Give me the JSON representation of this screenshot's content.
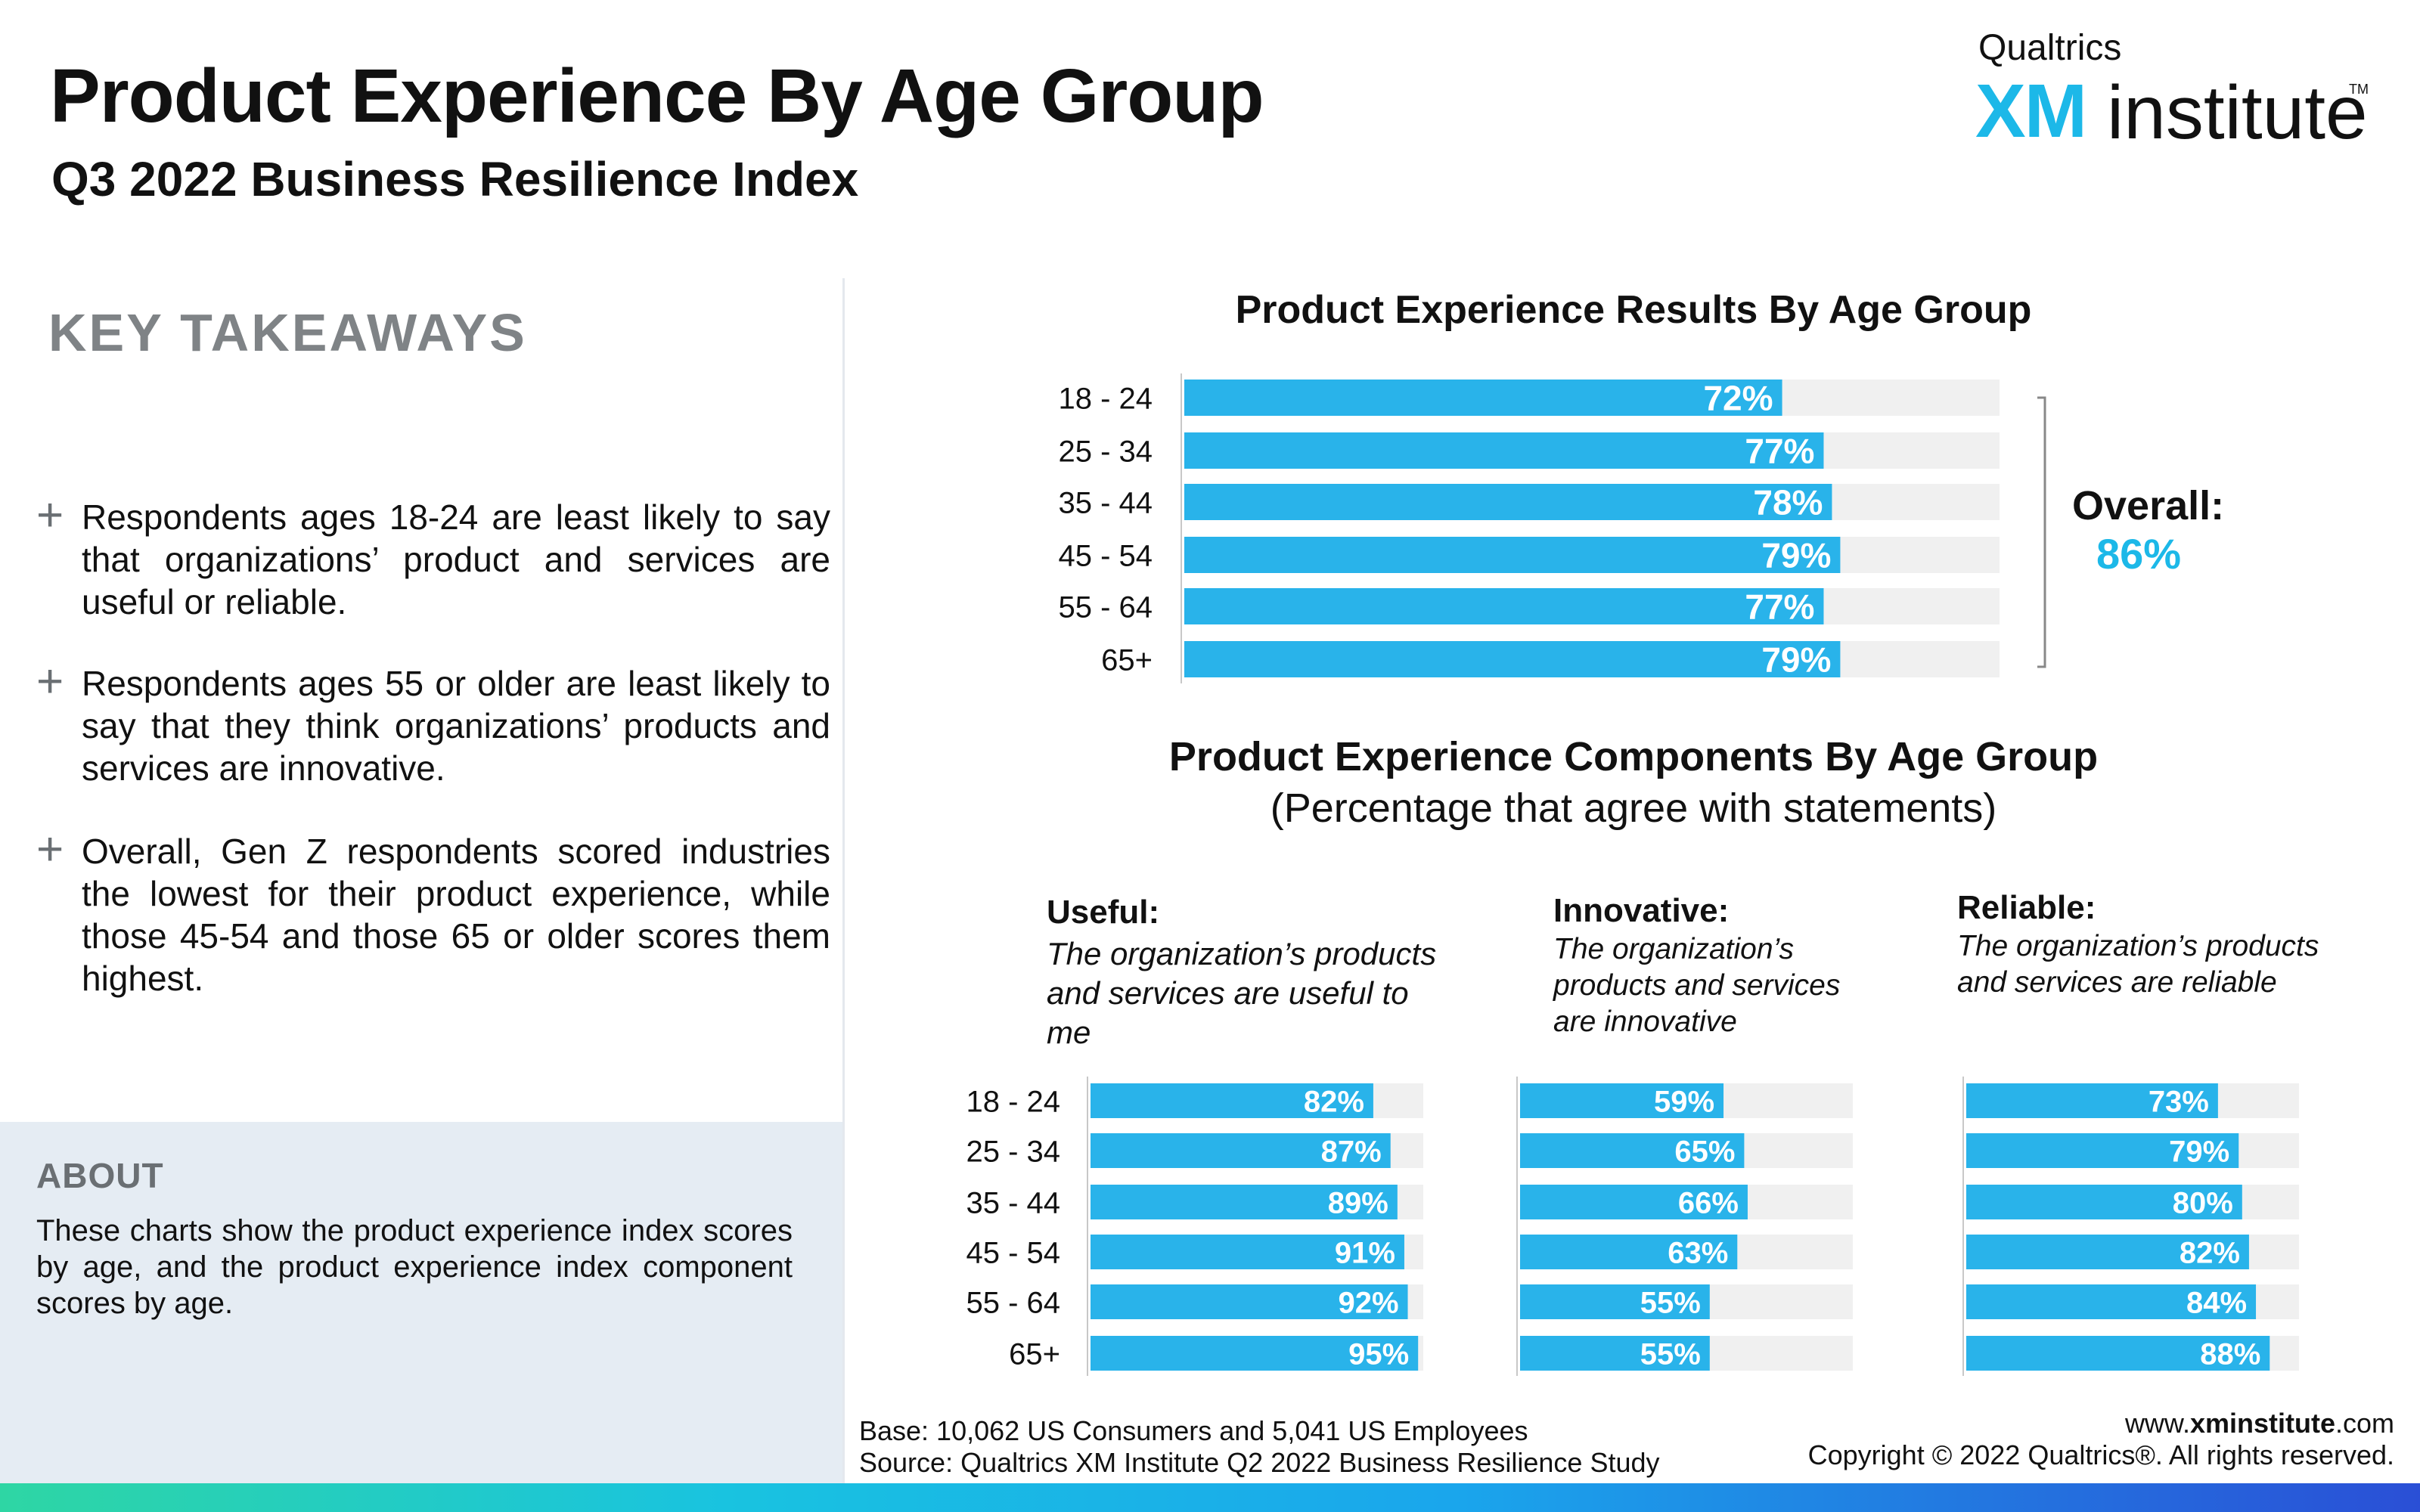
{
  "header": {
    "title": "Product Experience By Age Group",
    "subtitle": "Q3 2022 Business Resilience Index"
  },
  "logo": {
    "top_text": "Qualtrics",
    "xm_text": "XM",
    "institute_text": "institute",
    "tm_text": "TM"
  },
  "takeaways": {
    "title": "KEY TAKEAWAYS",
    "bullet_symbol": "+",
    "items": [
      "Respondents ages 18-24 are least likely to say that organizations’ product and services are useful or reliable.",
      "Respondents ages 55 or older are least likely to say that they think organizations’ products and services are innovative.",
      "Overall, Gen Z respondents scored industries the lowest for their product experience, while those 45-54 and those 65 or older scores them highest."
    ]
  },
  "about": {
    "title": "ABOUT",
    "text": "These charts show the product experience index scores by age, and the product experience index component scores by age."
  },
  "colors": {
    "bar": "#29b3ea",
    "track": "#f0f0f0",
    "accent": "#1cb8e8"
  },
  "chart_data": [
    {
      "type": "bar",
      "orientation": "horizontal",
      "title": "Product Experience Results By Age Group",
      "categories": [
        "18 - 24",
        "25 - 34",
        "35 - 44",
        "45 - 54",
        "55 - 64",
        "65+"
      ],
      "values": [
        72,
        77,
        78,
        79,
        77,
        79
      ],
      "value_labels": [
        "72%",
        "77%",
        "78%",
        "79%",
        "77%",
        "79%"
      ],
      "xlim": [
        0,
        100
      ],
      "annotation": {
        "label": "Overall:",
        "value": "86%"
      }
    },
    {
      "type": "bar",
      "orientation": "horizontal",
      "title": "Product Experience Components By Age Group",
      "subtitle": "(Percentage that agree with statements)",
      "categories": [
        "18 - 24",
        "25 - 34",
        "35 - 44",
        "45 - 54",
        "55 - 64",
        "65+"
      ],
      "xlim": [
        0,
        100
      ],
      "panels": [
        {
          "name": "Useful:",
          "description": "The organization’s products and services are useful to me",
          "values": [
            82,
            87,
            89,
            91,
            92,
            95
          ],
          "value_labels": [
            "82%",
            "87%",
            "89%",
            "91%",
            "92%",
            "95%"
          ]
        },
        {
          "name": "Innovative:",
          "description": "The organization’s products and services are innovative",
          "values": [
            59,
            65,
            66,
            63,
            55,
            55
          ],
          "value_labels": [
            "59%",
            "65%",
            "66%",
            "63%",
            "55%",
            "55%"
          ]
        },
        {
          "name": "Reliable:",
          "description": "The organization’s products and services are reliable",
          "values": [
            73,
            79,
            80,
            82,
            84,
            88
          ],
          "value_labels": [
            "73%",
            "79%",
            "80%",
            "82%",
            "84%",
            "88%"
          ]
        }
      ]
    }
  ],
  "footer": {
    "base": "Base: 10,062 US Consumers and 5,041 US Employees",
    "source": "Source: Qualtrics XM Institute Q2 2022 Business Resilience Study",
    "url_prefix": "www.",
    "url_bold": "xminstitute",
    "url_suffix": ".com",
    "copyright": "Copyright © 2022 Qualtrics®. All rights reserved."
  }
}
